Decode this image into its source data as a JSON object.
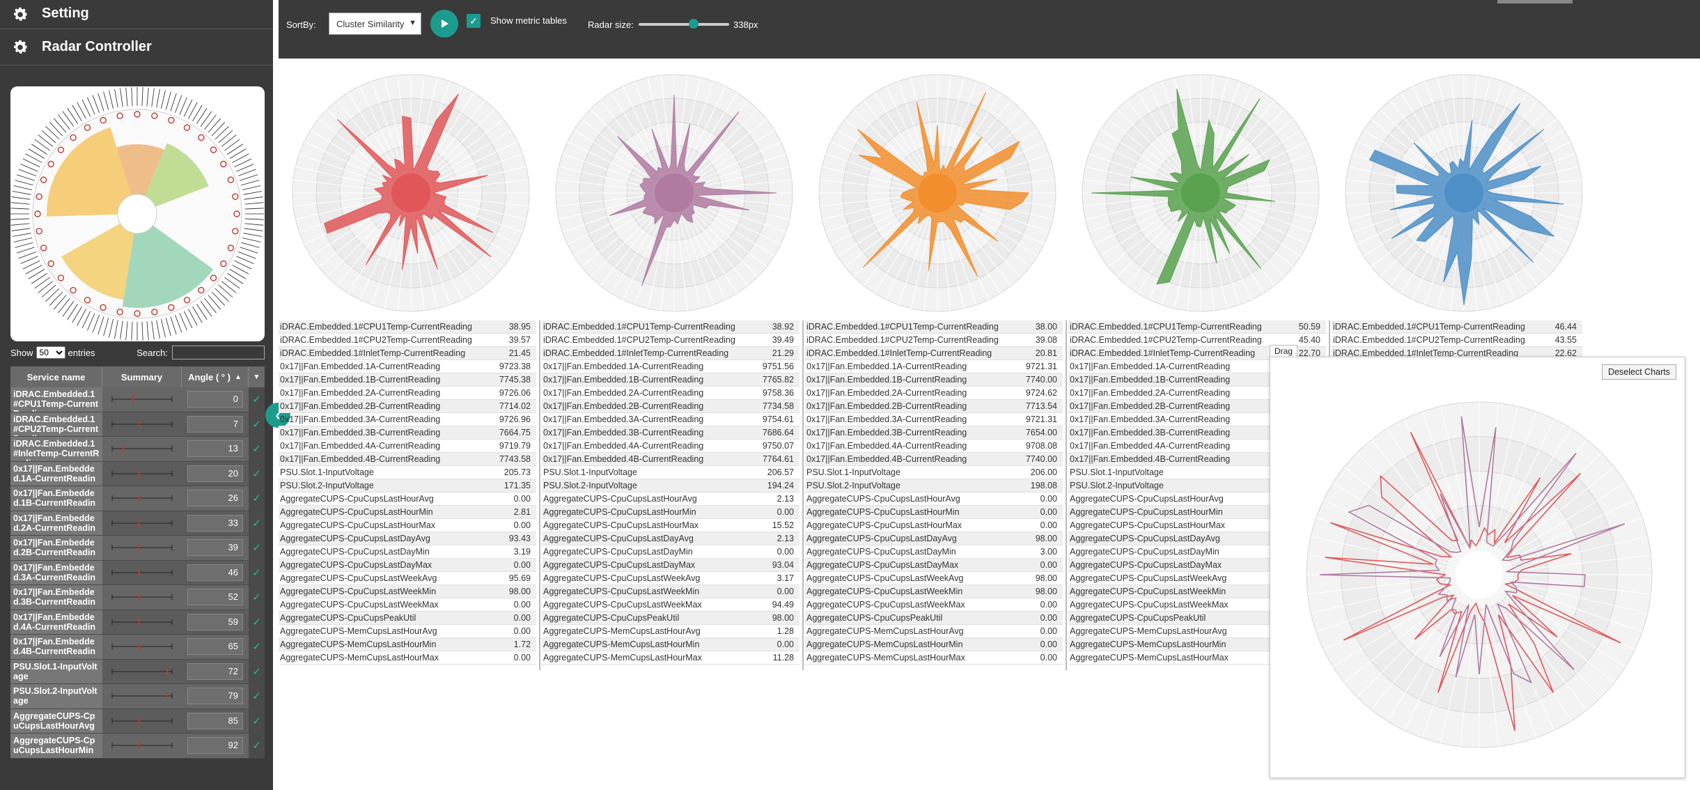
{
  "sidebar": {
    "sections": [
      {
        "label": "Setting",
        "icon": "gear-icon"
      },
      {
        "label": "Radar Controller",
        "icon": "gear-icon"
      }
    ],
    "table_controls": {
      "show_label": "Show",
      "page_size": "50",
      "entries_label": "entries",
      "search_label": "Search:",
      "search_value": ""
    },
    "table_headers": [
      "Service name",
      "Summary",
      "Angle ( ° )"
    ],
    "services": [
      {
        "name": "iDRAC.Embedded.1#CPU1Temp-CurrentReading",
        "angle": "0"
      },
      {
        "name": "iDRAC.Embedded.1#CPU2Temp-CurrentReading",
        "angle": "7"
      },
      {
        "name": "iDRAC.Embedded.1#InletTemp-CurrentReading",
        "angle": "13"
      },
      {
        "name": "0x17||Fan.Embedded.1A-CurrentReading",
        "angle": "20"
      },
      {
        "name": "0x17||Fan.Embedded.1B-CurrentReading",
        "angle": "26"
      },
      {
        "name": "0x17||Fan.Embedded.2A-CurrentReading",
        "angle": "33"
      },
      {
        "name": "0x17||Fan.Embedded.2B-CurrentReading",
        "angle": "39"
      },
      {
        "name": "0x17||Fan.Embedded.3A-CurrentReading",
        "angle": "46"
      },
      {
        "name": "0x17||Fan.Embedded.3B-CurrentReading",
        "angle": "52"
      },
      {
        "name": "0x17||Fan.Embedded.4A-CurrentReading",
        "angle": "59"
      },
      {
        "name": "0x17||Fan.Embedded.4B-CurrentReading",
        "angle": "65"
      },
      {
        "name": "PSU.Slot.1-InputVoltage",
        "angle": "72"
      },
      {
        "name": "PSU.Slot.2-InputVoltage",
        "angle": "79"
      },
      {
        "name": "AggregateCUPS-CpuCupsLastHourAvg",
        "angle": "85"
      },
      {
        "name": "AggregateCUPS-CpuCupsLastHourMin",
        "angle": "92"
      }
    ]
  },
  "toolbar": {
    "sortby_label": "SortBy:",
    "sort_value": "Cluster Similarity",
    "metric_tables_label": "Show metric tables",
    "radar_size_label": "Radar size:",
    "radar_size_value": "338px",
    "radar_size_level": 0.61
  },
  "clusters": [
    {
      "color": "#e15759",
      "rows": [
        [
          "iDRAC.Embedded.1#CPU1Temp-CurrentReading",
          "38.95"
        ],
        [
          "iDRAC.Embedded.1#CPU2Temp-CurrentReading",
          "39.57"
        ],
        [
          "iDRAC.Embedded.1#InletTemp-CurrentReading",
          "21.45"
        ],
        [
          "0x17||Fan.Embedded.1A-CurrentReading",
          "9723.38"
        ],
        [
          "0x17||Fan.Embedded.1B-CurrentReading",
          "7745.38"
        ],
        [
          "0x17||Fan.Embedded.2A-CurrentReading",
          "9726.06"
        ],
        [
          "0x17||Fan.Embedded.2B-CurrentReading",
          "7714.02"
        ],
        [
          "0x17||Fan.Embedded.3A-CurrentReading",
          "9726.96"
        ],
        [
          "0x17||Fan.Embedded.3B-CurrentReading",
          "7664.75"
        ],
        [
          "0x17||Fan.Embedded.4A-CurrentReading",
          "9719.79"
        ],
        [
          "0x17||Fan.Embedded.4B-CurrentReading",
          "7743.58"
        ],
        [
          "PSU.Slot.1-InputVoltage",
          "205.73"
        ],
        [
          "PSU.Slot.2-InputVoltage",
          "171.35"
        ],
        [
          "AggregateCUPS-CpuCupsLastHourAvg",
          "0.00"
        ],
        [
          "AggregateCUPS-CpuCupsLastHourMin",
          "2.81"
        ],
        [
          "AggregateCUPS-CpuCupsLastHourMax",
          "0.00"
        ],
        [
          "AggregateCUPS-CpuCupsLastDayAvg",
          "93.43"
        ],
        [
          "AggregateCUPS-CpuCupsLastDayMin",
          "3.19"
        ],
        [
          "AggregateCUPS-CpuCupsLastDayMax",
          "0.00"
        ],
        [
          "AggregateCUPS-CpuCupsLastWeekAvg",
          "95.69"
        ],
        [
          "AggregateCUPS-CpuCupsLastWeekMin",
          "98.00"
        ],
        [
          "AggregateCUPS-CpuCupsLastWeekMax",
          "0.00"
        ],
        [
          "AggregateCUPS-CpuCupsPeakUtil",
          "0.00"
        ],
        [
          "AggregateCUPS-MemCupsLastHourAvg",
          "0.00"
        ],
        [
          "AggregateCUPS-MemCupsLastHourMin",
          "1.72"
        ],
        [
          "AggregateCUPS-MemCupsLastHourMax",
          "0.00"
        ]
      ]
    },
    {
      "color": "#b07aa1",
      "rows": [
        [
          "iDRAC.Embedded.1#CPU1Temp-CurrentReading",
          "38.92"
        ],
        [
          "iDRAC.Embedded.1#CPU2Temp-CurrentReading",
          "39.49"
        ],
        [
          "iDRAC.Embedded.1#InletTemp-CurrentReading",
          "21.29"
        ],
        [
          "0x17||Fan.Embedded.1A-CurrentReading",
          "9751.56"
        ],
        [
          "0x17||Fan.Embedded.1B-CurrentReading",
          "7765.82"
        ],
        [
          "0x17||Fan.Embedded.2A-CurrentReading",
          "9758.36"
        ],
        [
          "0x17||Fan.Embedded.2B-CurrentReading",
          "7734.58"
        ],
        [
          "0x17||Fan.Embedded.3A-CurrentReading",
          "9754.61"
        ],
        [
          "0x17||Fan.Embedded.3B-CurrentReading",
          "7686.64"
        ],
        [
          "0x17||Fan.Embedded.4A-CurrentReading",
          "9750.07"
        ],
        [
          "0x17||Fan.Embedded.4B-CurrentReading",
          "7764.61"
        ],
        [
          "PSU.Slot.1-InputVoltage",
          "206.57"
        ],
        [
          "PSU.Slot.2-InputVoltage",
          "194.24"
        ],
        [
          "AggregateCUPS-CpuCupsLastHourAvg",
          "2.13"
        ],
        [
          "AggregateCUPS-CpuCupsLastHourMin",
          "0.00"
        ],
        [
          "AggregateCUPS-CpuCupsLastHourMax",
          "15.52"
        ],
        [
          "AggregateCUPS-CpuCupsLastDayAvg",
          "2.13"
        ],
        [
          "AggregateCUPS-CpuCupsLastDayMin",
          "0.00"
        ],
        [
          "AggregateCUPS-CpuCupsLastDayMax",
          "93.04"
        ],
        [
          "AggregateCUPS-CpuCupsLastWeekAvg",
          "3.17"
        ],
        [
          "AggregateCUPS-CpuCupsLastWeekMin",
          "0.00"
        ],
        [
          "AggregateCUPS-CpuCupsLastWeekMax",
          "94.49"
        ],
        [
          "AggregateCUPS-CpuCupsPeakUtil",
          "98.00"
        ],
        [
          "AggregateCUPS-MemCupsLastHourAvg",
          "1.28"
        ],
        [
          "AggregateCUPS-MemCupsLastHourMin",
          "0.00"
        ],
        [
          "AggregateCUPS-MemCupsLastHourMax",
          "11.28"
        ]
      ]
    },
    {
      "color": "#f28e2b",
      "rows": [
        [
          "iDRAC.Embedded.1#CPU1Temp-CurrentReading",
          "38.00"
        ],
        [
          "iDRAC.Embedded.1#CPU2Temp-CurrentReading",
          "39.08"
        ],
        [
          "iDRAC.Embedded.1#InletTemp-CurrentReading",
          "20.81"
        ],
        [
          "0x17||Fan.Embedded.1A-CurrentReading",
          "9721.31"
        ],
        [
          "0x17||Fan.Embedded.1B-CurrentReading",
          "7740.00"
        ],
        [
          "0x17||Fan.Embedded.2A-CurrentReading",
          "9724.62"
        ],
        [
          "0x17||Fan.Embedded.2B-CurrentReading",
          "7713.54"
        ],
        [
          "0x17||Fan.Embedded.3A-CurrentReading",
          "9721.31"
        ],
        [
          "0x17||Fan.Embedded.3B-CurrentReading",
          "7654.00"
        ],
        [
          "0x17||Fan.Embedded.4A-CurrentReading",
          "9708.08"
        ],
        [
          "0x17||Fan.Embedded.4B-CurrentReading",
          "7740.00"
        ],
        [
          "PSU.Slot.1-InputVoltage",
          "206.00"
        ],
        [
          "PSU.Slot.2-InputVoltage",
          "198.08"
        ],
        [
          "AggregateCUPS-CpuCupsLastHourAvg",
          "0.00"
        ],
        [
          "AggregateCUPS-CpuCupsLastHourMin",
          "0.00"
        ],
        [
          "AggregateCUPS-CpuCupsLastHourMax",
          "0.00"
        ],
        [
          "AggregateCUPS-CpuCupsLastDayAvg",
          "98.00"
        ],
        [
          "AggregateCUPS-CpuCupsLastDayMin",
          "3.00"
        ],
        [
          "AggregateCUPS-CpuCupsLastDayMax",
          "0.00"
        ],
        [
          "AggregateCUPS-CpuCupsLastWeekAvg",
          "98.00"
        ],
        [
          "AggregateCUPS-CpuCupsLastWeekMin",
          "98.00"
        ],
        [
          "AggregateCUPS-CpuCupsLastWeekMax",
          "0.00"
        ],
        [
          "AggregateCUPS-CpuCupsPeakUtil",
          "0.00"
        ],
        [
          "AggregateCUPS-MemCupsLastHourAvg",
          "0.00"
        ],
        [
          "AggregateCUPS-MemCupsLastHourMin",
          "0.00"
        ],
        [
          "AggregateCUPS-MemCupsLastHourMax",
          "0.00"
        ]
      ]
    },
    {
      "color": "#59a14f",
      "rows": [
        [
          "iDRAC.Embedded.1#CPU1Temp-CurrentReading",
          "50.59"
        ],
        [
          "iDRAC.Embedded.1#CPU2Temp-CurrentReading",
          "45.40"
        ],
        [
          "iDRAC.Embedded.1#InletTemp-CurrentReading",
          "22.70"
        ],
        [
          "0x17||Fan.Embedded.1A-CurrentReading",
          ""
        ],
        [
          "0x17||Fan.Embedded.1B-CurrentReading",
          ""
        ],
        [
          "0x17||Fan.Embedded.2A-CurrentReading",
          ""
        ],
        [
          "0x17||Fan.Embedded.2B-CurrentReading",
          ""
        ],
        [
          "0x17||Fan.Embedded.3A-CurrentReading",
          ""
        ],
        [
          "0x17||Fan.Embedded.3B-CurrentReading",
          ""
        ],
        [
          "0x17||Fan.Embedded.4A-CurrentReading",
          ""
        ],
        [
          "0x17||Fan.Embedded.4B-CurrentReading",
          ""
        ],
        [
          "PSU.Slot.1-InputVoltage",
          ""
        ],
        [
          "PSU.Slot.2-InputVoltage",
          ""
        ],
        [
          "AggregateCUPS-CpuCupsLastHourAvg",
          ""
        ],
        [
          "AggregateCUPS-CpuCupsLastHourMin",
          ""
        ],
        [
          "AggregateCUPS-CpuCupsLastHourMax",
          ""
        ],
        [
          "AggregateCUPS-CpuCupsLastDayAvg",
          ""
        ],
        [
          "AggregateCUPS-CpuCupsLastDayMin",
          ""
        ],
        [
          "AggregateCUPS-CpuCupsLastDayMax",
          ""
        ],
        [
          "AggregateCUPS-CpuCupsLastWeekAvg",
          ""
        ],
        [
          "AggregateCUPS-CpuCupsLastWeekMin",
          ""
        ],
        [
          "AggregateCUPS-CpuCupsLastWeekMax",
          ""
        ],
        [
          "AggregateCUPS-CpuCupsPeakUtil",
          ""
        ],
        [
          "AggregateCUPS-MemCupsLastHourAvg",
          ""
        ],
        [
          "AggregateCUPS-MemCupsLastHourMin",
          ""
        ],
        [
          "AggregateCUPS-MemCupsLastHourMax",
          ""
        ]
      ]
    },
    {
      "color": "#4e8fc8",
      "rows": [
        [
          "iDRAC.Embedded.1#CPU1Temp-CurrentReading",
          "46.44"
        ],
        [
          "iDRAC.Embedded.1#CPU2Temp-CurrentReading",
          "43.55"
        ],
        [
          "iDRAC.Embedded.1#InletTemp-CurrentReading",
          "22.62"
        ]
      ]
    }
  ],
  "compare_panel": {
    "drag_label": "Drag",
    "deselect_label": "Deselect Charts"
  }
}
